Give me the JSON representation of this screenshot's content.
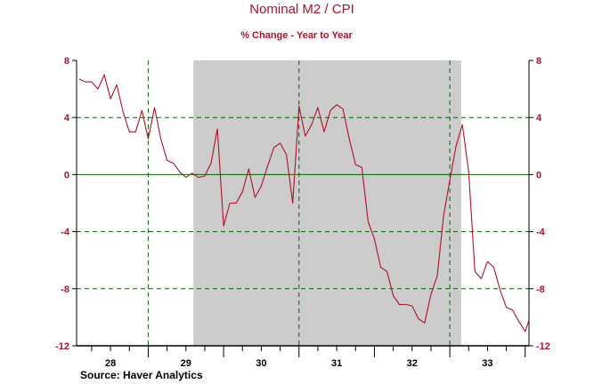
{
  "chart_data": {
    "type": "line",
    "title": "Nominal M2 / CPI",
    "subtitle": "% Change - Year to Year",
    "source": "Source: Haver Analytics",
    "ylim": [
      -12,
      8
    ],
    "xlim": [
      1927.55,
      1933.55
    ],
    "y_ticks": [
      8,
      4,
      0,
      -4,
      -8,
      -12
    ],
    "y_tick_labels": [
      "8",
      "4",
      "0",
      "-4",
      "-8",
      "-12"
    ],
    "x_tick_labels": [
      {
        "label": "28",
        "x": 1928.0
      },
      {
        "label": "29",
        "x": 1929.0
      },
      {
        "label": "30",
        "x": 1930.0
      },
      {
        "label": "31",
        "x": 1931.0
      },
      {
        "label": "32",
        "x": 1932.0
      },
      {
        "label": "33",
        "x": 1933.0
      }
    ],
    "year_ticks": [
      1928.5,
      1929.5,
      1930.5,
      1931.5,
      1932.5,
      1933.5
    ],
    "quarter_ticks_per_year": 4,
    "recession_shading": [
      {
        "start": 1929.1,
        "end": 1932.65
      }
    ],
    "vertical_dashed": [
      1928.5,
      1930.5,
      1932.5
    ],
    "horizontal_dashed": [
      4,
      -4,
      -8
    ],
    "zero_line": 0,
    "colors": {
      "series": "#b0102b",
      "shading": "#cccccc",
      "grid": "#006400",
      "tick_labels": "#b0102b"
    },
    "grid": true,
    "legend": "none",
    "series": [
      {
        "color": "#b0102b",
        "x": [
          1927.583,
          1927.667,
          1927.75,
          1927.833,
          1927.917,
          1928.0,
          1928.083,
          1928.167,
          1928.25,
          1928.333,
          1928.417,
          1928.5,
          1928.583,
          1928.667,
          1928.75,
          1928.833,
          1928.917,
          1929.0,
          1929.083,
          1929.167,
          1929.25,
          1929.333,
          1929.417,
          1929.5,
          1929.583,
          1929.667,
          1929.75,
          1929.833,
          1929.917,
          1930.0,
          1930.083,
          1930.167,
          1930.25,
          1930.333,
          1930.417,
          1930.5,
          1930.583,
          1930.667,
          1930.75,
          1930.833,
          1930.917,
          1931.0,
          1931.083,
          1931.167,
          1931.25,
          1931.333,
          1931.417,
          1931.5,
          1931.583,
          1931.667,
          1931.75,
          1931.833,
          1931.917,
          1932.0,
          1932.083,
          1932.167,
          1932.25,
          1932.333,
          1932.417,
          1932.5,
          1932.583,
          1932.667,
          1932.75,
          1932.833,
          1932.917,
          1933.0,
          1933.083,
          1933.167,
          1933.25,
          1933.333,
          1933.417,
          1933.5,
          1933.55
        ],
        "values": [
          6.7,
          6.5,
          6.5,
          6.0,
          7.0,
          5.3,
          6.3,
          4.4,
          3.0,
          3.0,
          4.5,
          2.5,
          4.7,
          2.5,
          1.0,
          0.8,
          0.2,
          -0.2,
          0.1,
          -0.2,
          -0.1,
          0.8,
          3.2,
          -3.6,
          -2.0,
          -2.0,
          -1.2,
          0.4,
          -1.6,
          -0.8,
          0.6,
          1.9,
          2.2,
          1.4,
          -2.0,
          4.8,
          2.7,
          3.5,
          4.7,
          3.0,
          4.5,
          4.9,
          4.6,
          2.5,
          0.7,
          0.5,
          -3.3,
          -4.5,
          -6.5,
          -6.8,
          -8.5,
          -9.1,
          -9.1,
          -9.2,
          -10.1,
          -10.4,
          -8.4,
          -7.1,
          -2.9,
          -0.4,
          2.0,
          3.5,
          0.2,
          -6.8,
          -7.3,
          -6.1,
          -6.5,
          -8.1,
          -9.3,
          -9.5,
          -10.3,
          -11.0,
          -10.2
        ]
      }
    ]
  }
}
